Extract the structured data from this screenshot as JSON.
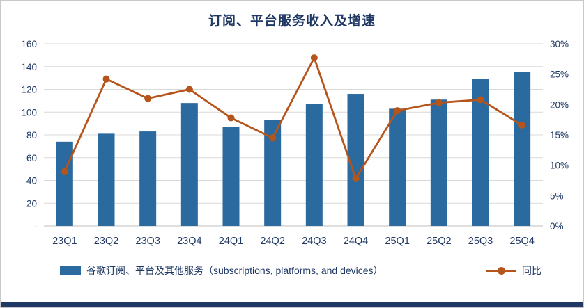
{
  "page": {
    "background": "#ffffff",
    "border_color": "#c8c8c8",
    "bottom_strip_color": "#1f3864",
    "text_color": "#1f3864"
  },
  "chart_data": {
    "type": "bar",
    "subtype": "combo-bar-line",
    "title": "订阅、平台服务收入及增速",
    "categories": [
      "23Q1",
      "23Q2",
      "23Q3",
      "23Q4",
      "24Q1",
      "24Q2",
      "24Q3",
      "24Q4",
      "25Q1",
      "25Q2",
      "25Q3",
      "25Q4"
    ],
    "series": [
      {
        "name": "谷歌订阅、平台及其他服务（subscriptions, platforms, and devices）",
        "type": "bar",
        "axis": "left",
        "color": "#2b6a9e",
        "values": [
          74,
          81,
          83,
          108,
          87,
          93,
          107,
          116,
          103,
          111,
          129,
          135
        ]
      },
      {
        "name": "同比",
        "type": "line",
        "axis": "right",
        "color": "#b5541b",
        "values_percent": [
          9,
          24.2,
          21,
          22.5,
          17.8,
          14.5,
          27.7,
          7.8,
          19,
          20.3,
          20.8,
          16.6
        ]
      }
    ],
    "left_axis": {
      "min": 0,
      "max": 160,
      "step": 20,
      "tick_labels": [
        "-",
        "20",
        "40",
        "60",
        "80",
        "100",
        "120",
        "140",
        "160"
      ]
    },
    "right_axis": {
      "min": 0,
      "max": 30,
      "step": 5,
      "tick_labels": [
        "0%",
        "5%",
        "10%",
        "15%",
        "20%",
        "25%",
        "30%"
      ]
    },
    "grid": true,
    "gridline_color": "#d9d9d9",
    "axis_line_color": "#bfbfbf",
    "legend_position": "bottom"
  }
}
